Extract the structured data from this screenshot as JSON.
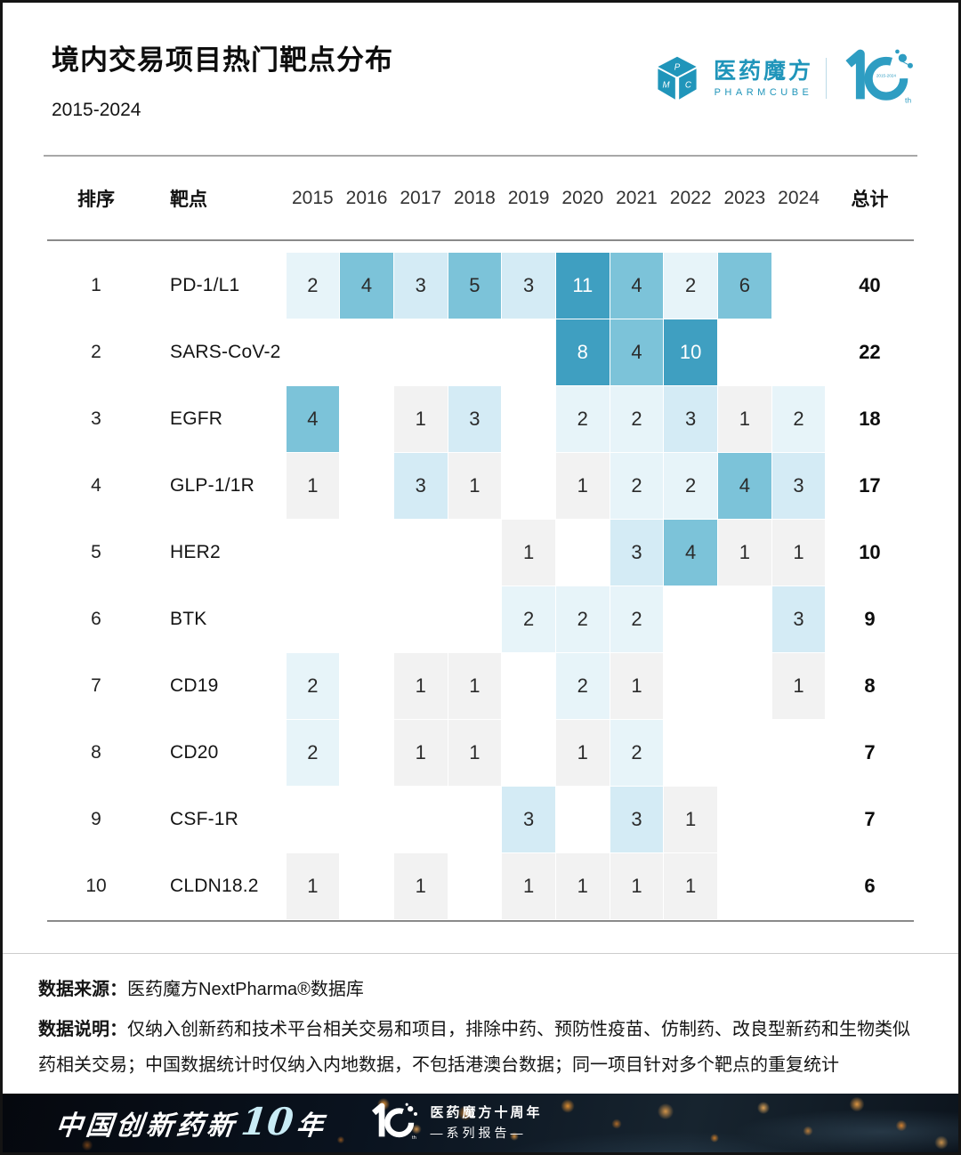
{
  "header": {
    "title": "境内交易项目热门靶点分布",
    "subtitle": "2015-2024",
    "logo": {
      "brand_cn": "医药魔方",
      "brand_en": "PHARMCUBE",
      "cube_letters": [
        "P",
        "M",
        "C"
      ],
      "anniversary_number": "10",
      "anniversary_range": "2015-2024",
      "anniversary_suffix": "th",
      "brand_color": "#2095ba"
    }
  },
  "table": {
    "col_rank": "排序",
    "col_target": "靶点",
    "col_total": "总计"
  },
  "chart_data": {
    "type": "heatmap",
    "title": "境内交易项目热门靶点分布",
    "subtitle": "2015-2024",
    "x": [
      "2015",
      "2016",
      "2017",
      "2018",
      "2019",
      "2020",
      "2021",
      "2022",
      "2023",
      "2024"
    ],
    "rows": [
      {
        "rank": 1,
        "target": "PD-1/L1",
        "values": [
          2,
          4,
          3,
          5,
          3,
          11,
          4,
          2,
          6,
          null
        ],
        "total": 40
      },
      {
        "rank": 2,
        "target": "SARS-CoV-2",
        "values": [
          null,
          null,
          null,
          null,
          null,
          8,
          4,
          10,
          null,
          null
        ],
        "total": 22
      },
      {
        "rank": 3,
        "target": "EGFR",
        "values": [
          4,
          null,
          1,
          3,
          null,
          2,
          2,
          3,
          1,
          2
        ],
        "total": 18
      },
      {
        "rank": 4,
        "target": "GLP-1/1R",
        "values": [
          1,
          null,
          3,
          1,
          null,
          1,
          2,
          2,
          4,
          3
        ],
        "total": 17
      },
      {
        "rank": 5,
        "target": "HER2",
        "values": [
          null,
          null,
          null,
          null,
          1,
          null,
          3,
          4,
          1,
          1
        ],
        "total": 10
      },
      {
        "rank": 6,
        "target": "BTK",
        "values": [
          null,
          null,
          null,
          null,
          2,
          2,
          2,
          null,
          null,
          3
        ],
        "total": 9
      },
      {
        "rank": 7,
        "target": "CD19",
        "values": [
          2,
          null,
          1,
          1,
          null,
          2,
          1,
          null,
          null,
          1
        ],
        "total": 8
      },
      {
        "rank": 8,
        "target": "CD20",
        "values": [
          2,
          null,
          1,
          1,
          null,
          1,
          2,
          null,
          null,
          null
        ],
        "total": 7
      },
      {
        "rank": 9,
        "target": "CSF-1R",
        "values": [
          null,
          null,
          null,
          null,
          3,
          null,
          3,
          1,
          null,
          null
        ],
        "total": 7
      },
      {
        "rank": 10,
        "target": "CLDN18.2",
        "values": [
          1,
          null,
          1,
          null,
          1,
          1,
          1,
          1,
          null,
          null
        ],
        "total": 6
      }
    ],
    "color_scale": {
      "empty": "transparent",
      "v1": "#f2f2f2",
      "v2": "#e7f4f9",
      "v3": "#d4ebf5",
      "v4_6": "#7cc3d9",
      "v8_plus": "#3f9fc1",
      "text_dark": "#2b2b2b",
      "text_light": "#ffffff"
    },
    "legend": "none",
    "grid": false
  },
  "footer": {
    "source_label": "数据来源：",
    "source_text": "医药魔方NextPharma®数据库",
    "note_label": "数据说明：",
    "note_text": "仅纳入创新药和技术平台相关交易和项目，排除中药、预防性疫苗、仿制药、改良型新药和生物类似药相关交易；中国数据统计时仅纳入内地数据，不包括港澳台数据；同一项目针对多个靶点的重复统计"
  },
  "banner": {
    "slogan_prefix": "中国创新药新",
    "slogan_number": "10",
    "slogan_suffix": "年",
    "logo_number": "10",
    "line1": "医药魔方十周年",
    "line2": "—系列报告—"
  }
}
